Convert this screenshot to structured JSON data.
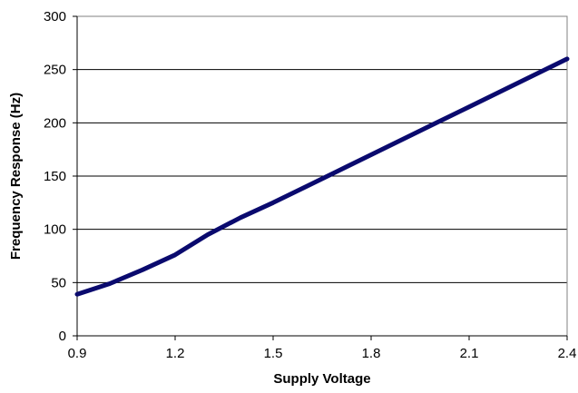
{
  "chart_data": {
    "type": "line",
    "title": "",
    "xlabel": "Supply Voltage",
    "ylabel": "Frequency Response (Hz)",
    "xlim": [
      0.9,
      2.4
    ],
    "ylim": [
      0,
      300
    ],
    "x_ticks": [
      "0.9",
      "1.2",
      "1.5",
      "1.8",
      "2.1",
      "2.4"
    ],
    "y_ticks": [
      "0",
      "50",
      "100",
      "150",
      "200",
      "250",
      "300"
    ],
    "grid": "horizontal",
    "legend": "none",
    "series": [
      {
        "color": "#0a0a6e",
        "x": [
          0.9,
          1.0,
          1.1,
          1.2,
          1.3,
          1.4,
          1.5,
          1.6,
          1.7,
          1.8,
          1.9,
          2.0,
          2.1,
          2.2,
          2.3,
          2.4
        ],
        "y": [
          39,
          49,
          62,
          76,
          95,
          111,
          125,
          140,
          155,
          170,
          185,
          200,
          215,
          230,
          245,
          260
        ]
      }
    ]
  }
}
